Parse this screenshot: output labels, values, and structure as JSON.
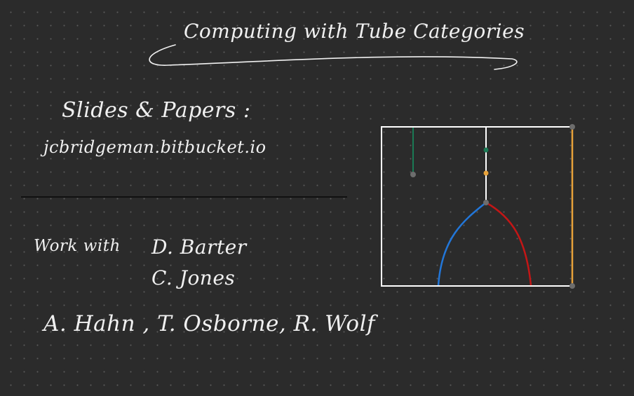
{
  "title": "Computing with Tube Categories",
  "slides": {
    "label": "Slides & Papers :",
    "url": "jcbridgeman.bitbucket.io"
  },
  "collaborators": {
    "label": "Work with",
    "names": [
      "D. Barter",
      "C. Jones",
      "A. Hahn , T. Osborne, R. Wolf"
    ]
  },
  "colors": {
    "background": "#2b2b2b",
    "ink": "#f0f0f0",
    "green_tube": "#1a7a55",
    "orange_tube": "#e8a23a",
    "blue_tube": "#2276d8",
    "red_tube": "#c41616",
    "node_gray": "#6d6d6d"
  }
}
